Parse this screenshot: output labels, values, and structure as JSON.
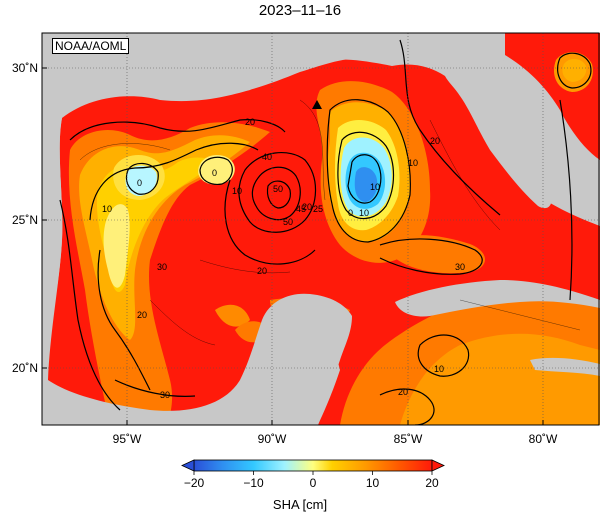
{
  "title": "2023–11–16",
  "credit": "NOAA/AOML",
  "map": {
    "lat_ticks": [
      "30˚N",
      "25˚N",
      "20˚N"
    ],
    "lon_ticks": [
      "95˚W",
      "90˚W",
      "85˚W",
      "80˚W"
    ],
    "contour_labels": [
      "0",
      "0",
      "0",
      "10",
      "10",
      "10",
      "10",
      "20",
      "20",
      "20",
      "20",
      "20",
      "20",
      "30",
      "30",
      "30",
      "50",
      "50",
      "45",
      "25",
      "40",
      "10",
      "10"
    ],
    "colors": {
      "land": "#c8c8c8",
      "ocean_high": "#ff1a0a",
      "ocean_mid": "#ff7a00",
      "ocean_low": "#ffcc00",
      "cool": "#33c8ff",
      "cold": "#2a6fe0"
    }
  },
  "colorbar": {
    "ticks": [
      "−20",
      "−10",
      "0",
      "10",
      "20"
    ],
    "label": "SHA [cm]",
    "min": -20,
    "max": 20
  }
}
